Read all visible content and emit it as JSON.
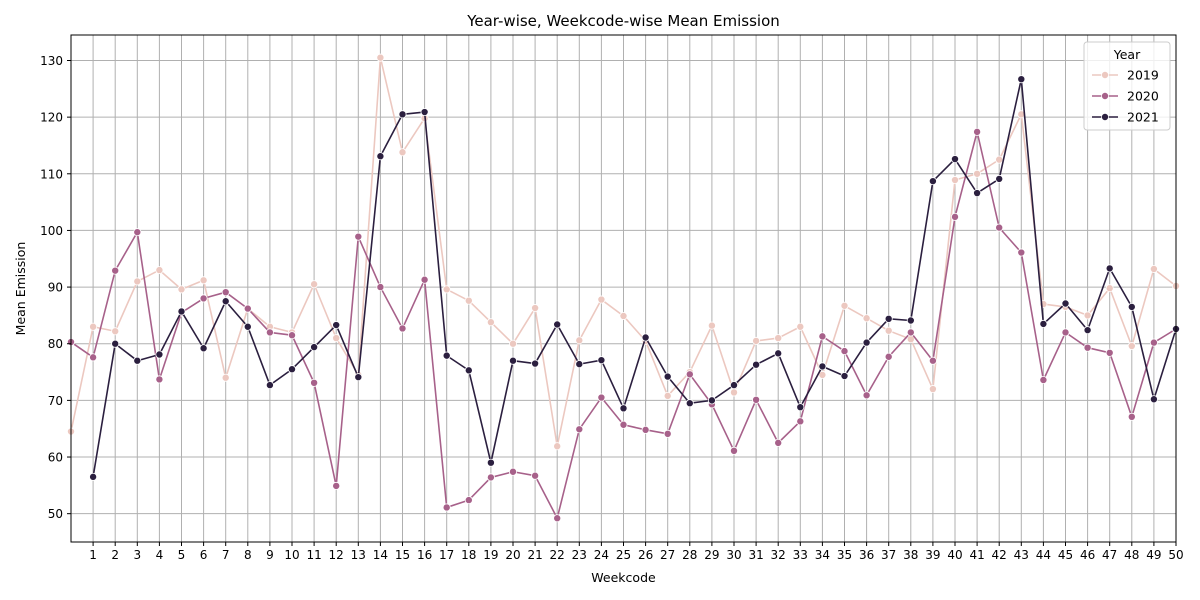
{
  "chart_data": {
    "type": "line",
    "title": "Year-wise, Weekcode-wise Mean Emission",
    "xlabel": "Weekcode",
    "ylabel": "Mean Emission",
    "xlim": [
      0,
      50
    ],
    "ylim": [
      45,
      134.5
    ],
    "x_ticks": [
      1,
      2,
      3,
      4,
      5,
      6,
      7,
      8,
      9,
      10,
      11,
      12,
      13,
      14,
      15,
      16,
      17,
      18,
      19,
      20,
      21,
      22,
      23,
      24,
      25,
      26,
      27,
      28,
      29,
      30,
      31,
      32,
      33,
      34,
      35,
      36,
      37,
      38,
      39,
      40,
      41,
      42,
      43,
      44,
      45,
      46,
      47,
      48,
      49,
      50
    ],
    "y_ticks": [
      50,
      60,
      70,
      80,
      90,
      100,
      110,
      120,
      130
    ],
    "grid": true,
    "legend": {
      "title": "Year",
      "placement": "top-right"
    },
    "x": [
      0,
      1,
      2,
      3,
      4,
      5,
      6,
      7,
      8,
      9,
      10,
      11,
      12,
      13,
      14,
      15,
      16,
      17,
      18,
      19,
      20,
      21,
      22,
      23,
      24,
      25,
      26,
      27,
      28,
      29,
      30,
      31,
      32,
      33,
      34,
      35,
      36,
      37,
      38,
      39,
      40,
      41,
      42,
      43,
      44,
      45,
      46,
      47,
      48,
      49,
      50
    ],
    "series": [
      {
        "name": "2019",
        "color": "#ecc8c0",
        "values": [
          64.5,
          83.0,
          82.2,
          91.0,
          93.0,
          89.6,
          91.2,
          74.0,
          86.2,
          83.0,
          82.0,
          90.5,
          81.0,
          74.5,
          130.5,
          113.8,
          119.8,
          89.6,
          87.6,
          83.8,
          80.0,
          86.3,
          61.9,
          80.6,
          87.8,
          84.9,
          80.5,
          70.8,
          75.0,
          83.2,
          71.4,
          80.5,
          81.0,
          83.0,
          74.5,
          86.7,
          84.5,
          82.3,
          80.8,
          72.0,
          108.9,
          110.0,
          112.5,
          120.5,
          87.0,
          86.5,
          85.0,
          89.8,
          79.6,
          93.2,
          90.2
        ]
      },
      {
        "name": "2020",
        "color": "#a7618a",
        "values": [
          80.3,
          77.6,
          92.9,
          99.7,
          73.7,
          85.5,
          88.0,
          89.1,
          86.2,
          82.0,
          81.5,
          73.1,
          54.9,
          98.9,
          90.0,
          82.7,
          91.3,
          51.1,
          52.4,
          56.4,
          57.4,
          56.7,
          49.2,
          64.9,
          70.5,
          65.7,
          64.8,
          64.1,
          74.6,
          69.3,
          61.1,
          70.1,
          62.5,
          66.3,
          81.3,
          78.7,
          70.9,
          77.7,
          82.0,
          77.0,
          102.4,
          117.4,
          100.5,
          96.1,
          73.6,
          82.0,
          79.3,
          78.4,
          67.1,
          80.2,
          82.6
        ]
      },
      {
        "name": "2021",
        "color": "#2b1f3f",
        "values": [
          null,
          56.5,
          80.0,
          77.0,
          78.1,
          85.7,
          79.2,
          87.5,
          83.0,
          72.7,
          75.5,
          79.4,
          83.3,
          74.1,
          113.1,
          120.5,
          120.9,
          77.9,
          75.3,
          59.0,
          77.0,
          76.5,
          83.4,
          76.4,
          77.1,
          68.6,
          81.1,
          74.2,
          69.5,
          70.0,
          72.7,
          76.3,
          78.3,
          68.8,
          76.0,
          74.3,
          80.2,
          84.4,
          84.1,
          108.7,
          112.6,
          106.6,
          109.1,
          126.7,
          83.5,
          87.1,
          82.4,
          93.3,
          86.5,
          70.2,
          82.6
        ]
      }
    ]
  }
}
